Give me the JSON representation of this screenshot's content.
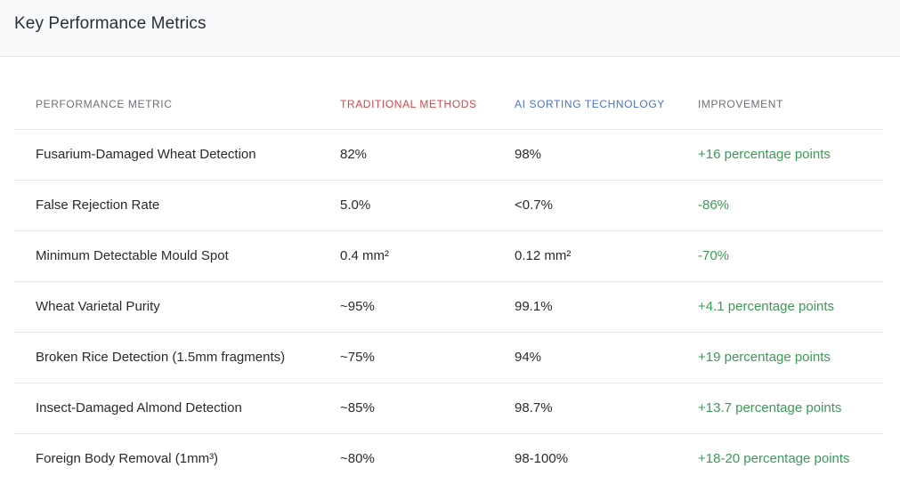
{
  "card": {
    "title": "Key Performance Metrics"
  },
  "table": {
    "headers": {
      "metric": "PERFORMANCE METRIC",
      "traditional": "TRADITIONAL METHODS",
      "ai": "AI SORTING TECHNOLOGY",
      "improvement": "IMPROVEMENT"
    },
    "rows": [
      {
        "metric": "Fusarium-Damaged Wheat Detection",
        "traditional": "82%",
        "ai": "98%",
        "improvement": "+16 percentage points"
      },
      {
        "metric": "False Rejection Rate",
        "traditional": "5.0%",
        "ai": "<0.7%",
        "improvement": "-86%"
      },
      {
        "metric": "Minimum Detectable Mould Spot",
        "traditional": "0.4 mm²",
        "ai": "0.12 mm²",
        "improvement": "-70%"
      },
      {
        "metric": "Wheat Varietal Purity",
        "traditional": "~95%",
        "ai": "99.1%",
        "improvement": "+4.1 percentage points"
      },
      {
        "metric": "Broken Rice Detection (1.5mm fragments)",
        "traditional": "~75%",
        "ai": "94%",
        "improvement": "+19 percentage points"
      },
      {
        "metric": "Insect-Damaged Almond Detection",
        "traditional": "~85%",
        "ai": "98.7%",
        "improvement": "+13.7 percentage points"
      },
      {
        "metric": "Foreign Body Removal (1mm³)",
        "traditional": "~80%",
        "ai": "98-100%",
        "improvement": "+18-20 percentage points"
      }
    ]
  },
  "colors": {
    "traditional_header": "#d64545",
    "ai_header": "#4a72c9",
    "improvement_text": "#3c9a57",
    "header_bg": "#f8f9fb"
  }
}
